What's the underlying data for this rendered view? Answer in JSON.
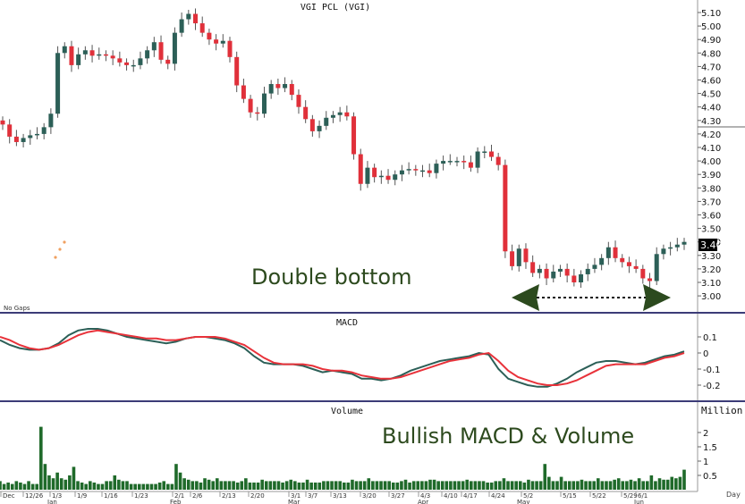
{
  "chart_data": [
    {
      "type": "candlestick",
      "title": "VGI PCL (VGI)",
      "note": "No Gaps",
      "annotation": "Double bottom",
      "ylim": [
        2.95,
        5.15
      ],
      "yticks": [
        "5.10",
        "5.00",
        "4.90",
        "4.80",
        "4.70",
        "4.60",
        "4.50",
        "4.40",
        "4.30",
        "4.20",
        "4.10",
        "4.00",
        "3.90",
        "3.80",
        "3.70",
        "3.60",
        "3.50",
        "3.40",
        "3.30",
        "3.20",
        "3.10",
        "3.00"
      ],
      "last_price": "3.40",
      "up_color": "#2c5f57",
      "down_color": "#e0303a",
      "closes": [
        4.27,
        4.18,
        4.14,
        4.17,
        4.19,
        4.2,
        4.25,
        4.35,
        4.8,
        4.85,
        4.71,
        4.79,
        4.82,
        4.78,
        4.79,
        4.78,
        4.76,
        4.73,
        4.71,
        4.71,
        4.76,
        4.82,
        4.88,
        4.75,
        4.72,
        4.95,
        5.05,
        5.09,
        5.02,
        4.95,
        4.9,
        4.87,
        4.89,
        4.77,
        4.56,
        4.46,
        4.36,
        4.35,
        4.5,
        4.57,
        4.54,
        4.57,
        4.49,
        4.4,
        4.31,
        4.22,
        4.26,
        4.32,
        4.34,
        4.36,
        4.33,
        4.05,
        3.83,
        3.95,
        3.88,
        3.89,
        3.86,
        3.9,
        3.93,
        3.94,
        3.93,
        3.93,
        3.91,
        3.98,
        4.0,
        4.0,
        4.0,
        3.99,
        3.95,
        4.07,
        4.07,
        4.03,
        3.97,
        3.33,
        3.22,
        3.35,
        3.25,
        3.17,
        3.2,
        3.13,
        3.18,
        3.2,
        3.15,
        3.1,
        3.16,
        3.2,
        3.23,
        3.28,
        3.36,
        3.28,
        3.25,
        3.22,
        3.2,
        3.13,
        3.11,
        3.31,
        3.35,
        3.36,
        3.38,
        3.4
      ],
      "date_labels": [
        "Dec",
        "12/26",
        "1/3",
        "1/9",
        "1/16",
        "1/23",
        "2/1",
        "2/6",
        "2/13",
        "2/20",
        "3/1",
        "3/7",
        "3/13",
        "3/20",
        "3/27",
        "4/3",
        "4/10",
        "4/17",
        "4/24",
        "5/2",
        "5/15",
        "5/22",
        "5/29",
        "6/1"
      ],
      "month_labels": [
        "Jan",
        "Feb",
        "Mar",
        "Apr",
        "May",
        "Jun"
      ]
    },
    {
      "type": "line",
      "title": "MACD",
      "yticks": [
        "0.1",
        "0",
        "-0.1",
        "-0.2"
      ],
      "series": [
        {
          "color": "#2c5f57",
          "values": [
            0.08,
            0.05,
            0.03,
            0.02,
            0.02,
            0.03,
            0.06,
            0.11,
            0.14,
            0.15,
            0.15,
            0.14,
            0.12,
            0.1,
            0.09,
            0.08,
            0.07,
            0.06,
            0.07,
            0.09,
            0.1,
            0.1,
            0.09,
            0.08,
            0.06,
            0.03,
            -0.02,
            -0.06,
            -0.07,
            -0.07,
            -0.07,
            -0.08,
            -0.1,
            -0.12,
            -0.11,
            -0.12,
            -0.13,
            -0.16,
            -0.16,
            -0.17,
            -0.16,
            -0.14,
            -0.11,
            -0.09,
            -0.07,
            -0.05,
            -0.04,
            -0.03,
            -0.02,
            0.0,
            -0.01,
            -0.1,
            -0.16,
            -0.18,
            -0.2,
            -0.21,
            -0.21,
            -0.19,
            -0.16,
            -0.12,
            -0.09,
            -0.06,
            -0.05,
            -0.05,
            -0.06,
            -0.07,
            -0.06,
            -0.04,
            -0.02,
            -0.01,
            0.01
          ]
        },
        {
          "color": "#e8323a",
          "values": [
            0.1,
            0.08,
            0.05,
            0.03,
            0.02,
            0.03,
            0.05,
            0.08,
            0.11,
            0.13,
            0.14,
            0.13,
            0.12,
            0.11,
            0.1,
            0.09,
            0.09,
            0.08,
            0.08,
            0.09,
            0.1,
            0.1,
            0.1,
            0.09,
            0.07,
            0.05,
            0.01,
            -0.03,
            -0.06,
            -0.07,
            -0.07,
            -0.07,
            -0.08,
            -0.1,
            -0.11,
            -0.11,
            -0.12,
            -0.14,
            -0.15,
            -0.16,
            -0.16,
            -0.15,
            -0.13,
            -0.11,
            -0.09,
            -0.07,
            -0.05,
            -0.04,
            -0.03,
            -0.01,
            0.0,
            -0.05,
            -0.11,
            -0.15,
            -0.17,
            -0.19,
            -0.2,
            -0.2,
            -0.19,
            -0.17,
            -0.14,
            -0.11,
            -0.08,
            -0.07,
            -0.07,
            -0.07,
            -0.07,
            -0.05,
            -0.03,
            -0.02,
            0.0
          ]
        }
      ],
      "annotation": "Bullish MACD & Volume"
    },
    {
      "type": "bar",
      "title": "Volume",
      "unit": "Million",
      "yticks": [
        "2",
        "1.5",
        "1",
        "0.5"
      ],
      "color": "#1f6a2a",
      "values": [
        0.3,
        0.2,
        0.25,
        0.2,
        0.3,
        0.25,
        0.2,
        0.3,
        0.2,
        0.2,
        2.2,
        0.9,
        0.5,
        0.4,
        0.6,
        0.4,
        0.35,
        0.5,
        0.8,
        0.3,
        0.25,
        0.2,
        0.3,
        0.25,
        0.2,
        0.2,
        0.3,
        0.3,
        0.5,
        0.35,
        0.3,
        0.3,
        0.2,
        0.2,
        0.2,
        0.2,
        0.2,
        0.2,
        0.2,
        0.25,
        0.3,
        0.2,
        0.2,
        0.9,
        0.6,
        0.4,
        0.35,
        0.3,
        0.3,
        0.25,
        0.4,
        0.35,
        0.3,
        0.4,
        0.3,
        0.3,
        0.3,
        0.3,
        0.25,
        0.3,
        0.4,
        0.25,
        0.25,
        0.25,
        0.35,
        0.3,
        0.3,
        0.3,
        0.3,
        0.25,
        0.3,
        0.35,
        0.3,
        0.25,
        0.25,
        0.35,
        0.25,
        0.25,
        0.25,
        0.3,
        0.3,
        0.3,
        0.3,
        0.3,
        0.25,
        0.25,
        0.35,
        0.3,
        0.3,
        0.3,
        0.4,
        0.3,
        0.3,
        0.3,
        0.3,
        0.3,
        0.25,
        0.25,
        0.3,
        0.35,
        0.25,
        0.3,
        0.3,
        0.3,
        0.3,
        0.35,
        0.35,
        0.3,
        0.3,
        0.3,
        0.3,
        0.3,
        0.3,
        0.3,
        0.35,
        0.3,
        0.3,
        0.3,
        0.3,
        0.25,
        0.25,
        0.3,
        0.3,
        0.4,
        0.3,
        0.3,
        0.3,
        0.3,
        0.25,
        0.35,
        0.3,
        0.3,
        0.3,
        0.9,
        0.45,
        0.3,
        0.3,
        0.45,
        0.3,
        0.3,
        0.3,
        0.3,
        0.35,
        0.3,
        0.3,
        0.3,
        0.4,
        0.3,
        0.3,
        0.3,
        0.35,
        0.4,
        0.3,
        0.3,
        0.35,
        0.3,
        0.4,
        0.3,
        0.3,
        0.5,
        0.3,
        0.4,
        0.35,
        0.35,
        0.45,
        0.4,
        0.45,
        0.7
      ]
    }
  ],
  "x_axis_label": "Day",
  "colors": {
    "panel_border": "#3c3c78",
    "arrow": "#2c4a1e",
    "annotation": "#2d4a1e"
  }
}
